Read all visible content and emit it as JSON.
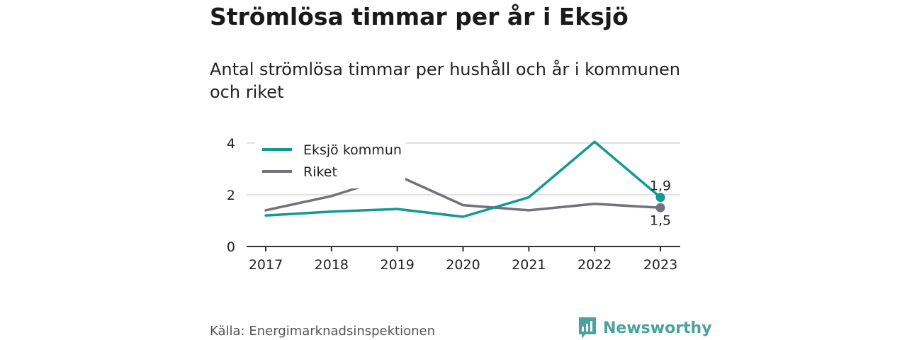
{
  "title": "Strömlösa timmar per år i Eksjö",
  "subtitle": "Antal strömlösa timmar per hushåll och år i kommunen och riket",
  "source": "Källa: Energimarknadsinspektionen",
  "brand": {
    "name": "Newsworthy",
    "color": "#4aa39a",
    "icon": "newsworthy-logo-icon"
  },
  "chart_data": {
    "type": "line",
    "categories": [
      "2017",
      "2018",
      "2019",
      "2020",
      "2021",
      "2022",
      "2023"
    ],
    "series": [
      {
        "name": "Eksjö kommun",
        "color": "#119a92",
        "values": [
          1.2,
          1.35,
          1.45,
          1.15,
          1.9,
          4.05,
          1.9
        ]
      },
      {
        "name": "Riket",
        "color": "#737278",
        "values": [
          1.4,
          1.95,
          2.75,
          1.6,
          1.4,
          1.65,
          1.5
        ]
      }
    ],
    "yticks": [
      0,
      2,
      4
    ],
    "ylim": [
      0,
      4
    ],
    "xlabel": "",
    "ylabel": "",
    "grid": true,
    "legend": "top-left",
    "end_labels": [
      {
        "series": "Eksjö kommun",
        "text": "1,9",
        "position": "above"
      },
      {
        "series": "Riket",
        "text": "1,5",
        "position": "below"
      }
    ]
  }
}
